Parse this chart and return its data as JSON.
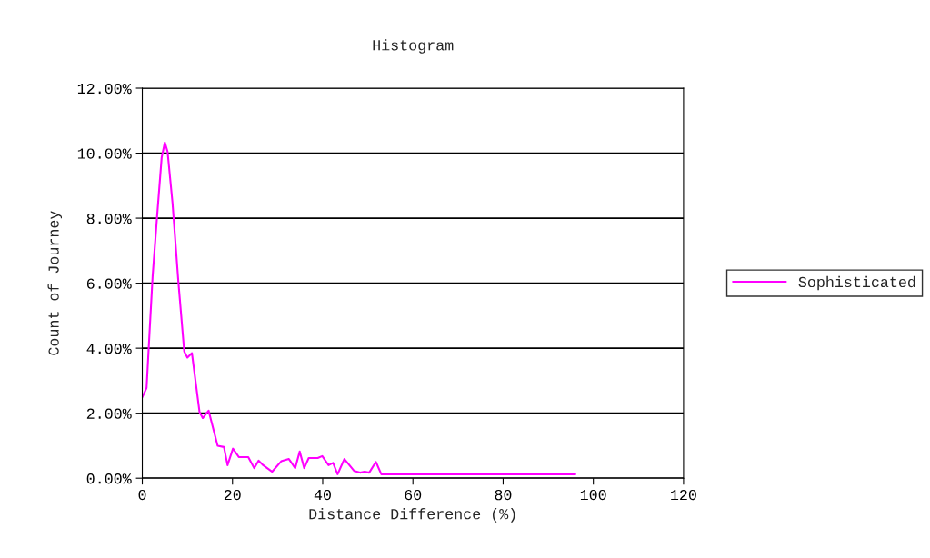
{
  "chart_data": {
    "type": "line",
    "title": "Histogram",
    "xlabel": "Distance Difference (%)",
    "ylabel": "Count of Journey",
    "x": [
      0,
      0.95,
      1.6,
      2.3,
      3.3,
      4.3,
      5.0,
      5.6,
      6.7,
      8.0,
      9.3,
      10.0,
      11.0,
      12.7,
      13.4,
      14.7,
      16.7,
      18.1,
      18.9,
      20.1,
      21.4,
      23.5,
      24.8,
      25.8,
      26.8,
      28.8,
      30.8,
      32.5,
      33.9,
      34.9,
      35.9,
      36.9,
      38.9,
      39.9,
      41.3,
      42.3,
      43.3,
      44.8,
      47.0,
      48.3,
      49.3,
      50.3,
      51.8,
      53.0,
      96
    ],
    "series": [
      {
        "name": "Sophisticated",
        "color": "#ff00ff",
        "values": [
          2.49,
          2.78,
          4.46,
          6.23,
          8.09,
          9.87,
          10.33,
          10.05,
          8.47,
          6.04,
          3.9,
          3.71,
          3.85,
          2.03,
          1.85,
          2.08,
          1.0,
          0.96,
          0.4,
          0.91,
          0.65,
          0.65,
          0.31,
          0.54,
          0.4,
          0.2,
          0.52,
          0.59,
          0.31,
          0.82,
          0.31,
          0.62,
          0.62,
          0.68,
          0.4,
          0.47,
          0.12,
          0.59,
          0.22,
          0.17,
          0.2,
          0.17,
          0.5,
          0.12,
          0.12
        ]
      }
    ],
    "xlim": [
      0,
      120
    ],
    "xticks": [
      0,
      20,
      40,
      60,
      80,
      100,
      120
    ],
    "ylim": [
      0,
      12
    ],
    "yticks": [
      {
        "value": 0,
        "label": "0.00%"
      },
      {
        "value": 2,
        "label": "2.00%"
      },
      {
        "value": 4,
        "label": "4.00%"
      },
      {
        "value": 6,
        "label": "6.00%"
      },
      {
        "value": 8,
        "label": "8.00%"
      },
      {
        "value": 10,
        "label": "10.00%"
      },
      {
        "value": 12,
        "label": "12.00%"
      }
    ],
    "grid": "y",
    "legend": "right",
    "marker": "none",
    "line_style": "solid"
  }
}
